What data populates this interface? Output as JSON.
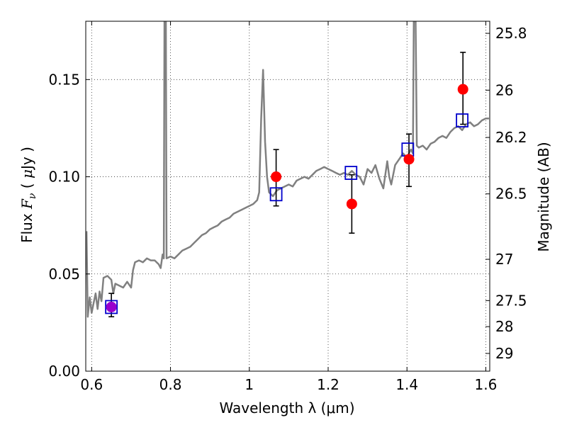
{
  "chart_data": {
    "type": "scatter",
    "xlabel": "Wavelength  λ (μm)",
    "ylabel": "Flux  F_ν  ( μJy )",
    "ylabel_parts": [
      "Flux  ",
      "F",
      "ν",
      "  ( ",
      "μ",
      "Jy )"
    ],
    "right_ylabel": "Magnitude (AB)",
    "xlim": [
      0.585,
      1.61
    ],
    "ylim": [
      0.0,
      0.18
    ],
    "x_ticks": [
      0.6,
      0.8,
      1.0,
      1.2,
      1.4,
      1.6
    ],
    "x_tick_labels": [
      "0.6",
      "0.8",
      "1",
      "1.2",
      "1.4",
      "1.6"
    ],
    "y_ticks": [
      0.0,
      0.05,
      0.1,
      0.15
    ],
    "y_tick_labels": [
      "0.00",
      "0.05",
      "0.10",
      "0.15"
    ],
    "right_y_ticks": [
      {
        "label": "25.8",
        "mag": 25.8
      },
      {
        "label": "26",
        "mag": 26.0
      },
      {
        "label": "26.2",
        "mag": 26.2
      },
      {
        "label": "26.5",
        "mag": 26.5
      },
      {
        "label": "27",
        "mag": 27.0
      },
      {
        "label": "27.5",
        "mag": 27.5
      },
      {
        "label": "28",
        "mag": 28.0
      },
      {
        "label": "29",
        "mag": 29.0
      }
    ],
    "grid": true,
    "colors": {
      "spectrum": "#808080",
      "observed": "#ff0000",
      "model": "#0000cc",
      "overlap": "#9900cc",
      "errorbar": "#000000"
    },
    "spectrum": [
      [
        0.587,
        0.072
      ],
      [
        0.59,
        0.028
      ],
      [
        0.595,
        0.038
      ],
      [
        0.6,
        0.03
      ],
      [
        0.605,
        0.035
      ],
      [
        0.61,
        0.04
      ],
      [
        0.615,
        0.032
      ],
      [
        0.62,
        0.041
      ],
      [
        0.625,
        0.036
      ],
      [
        0.63,
        0.048
      ],
      [
        0.64,
        0.049
      ],
      [
        0.65,
        0.047
      ],
      [
        0.655,
        0.04
      ],
      [
        0.66,
        0.045
      ],
      [
        0.67,
        0.044
      ],
      [
        0.68,
        0.043
      ],
      [
        0.69,
        0.046
      ],
      [
        0.7,
        0.043
      ],
      [
        0.705,
        0.052
      ],
      [
        0.71,
        0.056
      ],
      [
        0.72,
        0.057
      ],
      [
        0.73,
        0.056
      ],
      [
        0.74,
        0.058
      ],
      [
        0.75,
        0.057
      ],
      [
        0.76,
        0.057
      ],
      [
        0.77,
        0.055
      ],
      [
        0.775,
        0.053
      ],
      [
        0.78,
        0.06
      ],
      [
        0.783,
        0.058
      ],
      [
        0.785,
        0.2
      ],
      [
        0.788,
        0.2
      ],
      [
        0.79,
        0.058
      ],
      [
        0.8,
        0.059
      ],
      [
        0.81,
        0.058
      ],
      [
        0.82,
        0.06
      ],
      [
        0.83,
        0.062
      ],
      [
        0.84,
        0.063
      ],
      [
        0.85,
        0.064
      ],
      [
        0.86,
        0.066
      ],
      [
        0.87,
        0.068
      ],
      [
        0.88,
        0.07
      ],
      [
        0.89,
        0.071
      ],
      [
        0.9,
        0.073
      ],
      [
        0.91,
        0.074
      ],
      [
        0.92,
        0.075
      ],
      [
        0.93,
        0.077
      ],
      [
        0.94,
        0.078
      ],
      [
        0.95,
        0.079
      ],
      [
        0.96,
        0.081
      ],
      [
        0.97,
        0.082
      ],
      [
        0.98,
        0.083
      ],
      [
        0.99,
        0.084
      ],
      [
        1.0,
        0.085
      ],
      [
        1.01,
        0.086
      ],
      [
        1.02,
        0.088
      ],
      [
        1.025,
        0.092
      ],
      [
        1.03,
        0.13
      ],
      [
        1.035,
        0.155
      ],
      [
        1.04,
        0.118
      ],
      [
        1.045,
        0.1
      ],
      [
        1.05,
        0.092
      ],
      [
        1.06,
        0.09
      ],
      [
        1.07,
        0.093
      ],
      [
        1.08,
        0.094
      ],
      [
        1.09,
        0.095
      ],
      [
        1.1,
        0.096
      ],
      [
        1.11,
        0.095
      ],
      [
        1.12,
        0.098
      ],
      [
        1.13,
        0.099
      ],
      [
        1.14,
        0.1
      ],
      [
        1.15,
        0.099
      ],
      [
        1.16,
        0.101
      ],
      [
        1.17,
        0.103
      ],
      [
        1.18,
        0.104
      ],
      [
        1.19,
        0.105
      ],
      [
        1.2,
        0.104
      ],
      [
        1.21,
        0.103
      ],
      [
        1.22,
        0.102
      ],
      [
        1.23,
        0.101
      ],
      [
        1.24,
        0.102
      ],
      [
        1.25,
        0.101
      ],
      [
        1.26,
        0.103
      ],
      [
        1.27,
        0.101
      ],
      [
        1.28,
        0.1
      ],
      [
        1.29,
        0.096
      ],
      [
        1.3,
        0.104
      ],
      [
        1.31,
        0.102
      ],
      [
        1.32,
        0.106
      ],
      [
        1.33,
        0.099
      ],
      [
        1.34,
        0.094
      ],
      [
        1.35,
        0.108
      ],
      [
        1.355,
        0.1
      ],
      [
        1.36,
        0.096
      ],
      [
        1.37,
        0.106
      ],
      [
        1.38,
        0.109
      ],
      [
        1.39,
        0.112
      ],
      [
        1.4,
        0.11
      ],
      [
        1.41,
        0.114
      ],
      [
        1.415,
        0.112
      ],
      [
        1.418,
        0.2
      ],
      [
        1.421,
        0.2
      ],
      [
        1.425,
        0.116
      ],
      [
        1.43,
        0.115
      ],
      [
        1.44,
        0.116
      ],
      [
        1.45,
        0.114
      ],
      [
        1.46,
        0.117
      ],
      [
        1.47,
        0.118
      ],
      [
        1.48,
        0.12
      ],
      [
        1.49,
        0.121
      ],
      [
        1.5,
        0.12
      ],
      [
        1.51,
        0.123
      ],
      [
        1.52,
        0.125
      ],
      [
        1.53,
        0.126
      ],
      [
        1.54,
        0.124
      ],
      [
        1.55,
        0.127
      ],
      [
        1.56,
        0.128
      ],
      [
        1.57,
        0.126
      ],
      [
        1.58,
        0.127
      ],
      [
        1.59,
        0.129
      ],
      [
        1.6,
        0.13
      ],
      [
        1.608,
        0.13
      ]
    ],
    "observed_points": [
      {
        "x": 0.65,
        "y": 0.033,
        "err_lo": 0.005,
        "err_hi": 0.007
      },
      {
        "x": 1.068,
        "y": 0.1,
        "err_lo": 0.015,
        "err_hi": 0.014
      },
      {
        "x": 1.26,
        "y": 0.086,
        "err_lo": 0.015,
        "err_hi": 0.015
      },
      {
        "x": 1.405,
        "y": 0.109,
        "err_lo": 0.014,
        "err_hi": 0.013
      },
      {
        "x": 1.542,
        "y": 0.145,
        "err_lo": 0.018,
        "err_hi": 0.019
      }
    ],
    "model_points": [
      {
        "x": 0.65,
        "y": 0.033
      },
      {
        "x": 1.068,
        "y": 0.091
      },
      {
        "x": 1.258,
        "y": 0.102
      },
      {
        "x": 1.402,
        "y": 0.114
      },
      {
        "x": 1.54,
        "y": 0.129
      }
    ]
  }
}
